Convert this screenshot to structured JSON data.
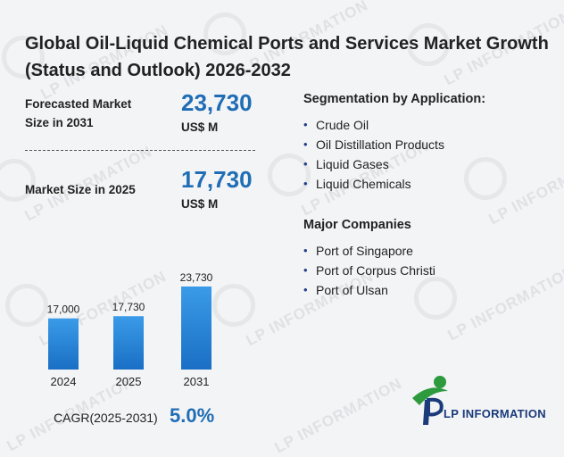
{
  "header": {
    "title": "Global Oil-Liquid Chemical Ports and Services Market Growth (Status and Outlook) 2026-2032"
  },
  "forecast": {
    "label": "Forecasted Market Size in 2031",
    "value": "23,730",
    "unit": "US$ M"
  },
  "current": {
    "label": "Market Size in 2025",
    "value": "17,730",
    "unit": "US$ M"
  },
  "segmentation": {
    "title": "Segmentation by Application:",
    "items": [
      "Crude Oil",
      "Oil Distillation Products",
      "Liquid Gases",
      "Liquid Chemicals"
    ]
  },
  "companies": {
    "title": "Major Companies",
    "items": [
      "Port of Singapore",
      "Port of Corpus Christi",
      "Port of Ulsan"
    ]
  },
  "cagr": {
    "label": "CAGR(2025-2031)",
    "value": "5.0%"
  },
  "logo": {
    "text": "LP INFORMATION"
  },
  "watermark": {
    "text": "LP INFORMATION"
  },
  "colors": {
    "accent": "#1f6db5",
    "bar_top": "#3a9be8",
    "bar_bottom": "#1a6fc4",
    "logo_green": "#2e9a3e",
    "logo_blue": "#1a3a7a"
  },
  "chart_data": {
    "type": "bar",
    "categories": [
      "2024",
      "2025",
      "2031"
    ],
    "values": [
      17000,
      17730,
      23730
    ],
    "data_labels": [
      "17,000",
      "17,730",
      "23,730"
    ],
    "title": "",
    "xlabel": "",
    "ylabel": "",
    "grid": false,
    "legend": "none"
  }
}
